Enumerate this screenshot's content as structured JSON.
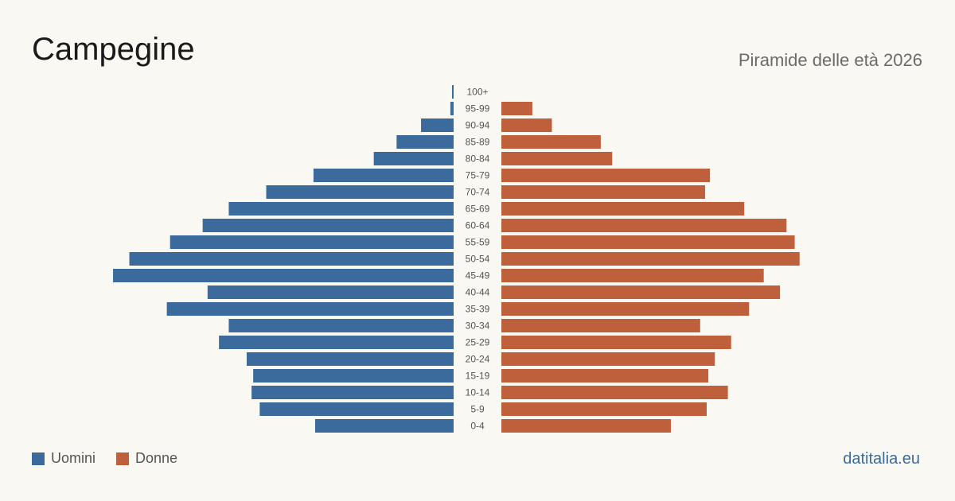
{
  "header": {
    "title": "Campegine",
    "subtitle": "Piramide delle età 2026"
  },
  "legend": {
    "items": [
      {
        "label": "Uomini",
        "color": "#3a6b9c"
      },
      {
        "label": "Donne",
        "color": "#bf603d"
      }
    ]
  },
  "footer": {
    "brand": "datitalia.eu"
  },
  "chart_data": {
    "type": "bar",
    "orientation": "horizontal-pyramid",
    "categories": [
      "100+",
      "95-99",
      "90-94",
      "85-89",
      "80-84",
      "75-79",
      "70-74",
      "65-69",
      "60-64",
      "55-59",
      "50-54",
      "45-49",
      "40-44",
      "35-39",
      "30-34",
      "25-29",
      "20-24",
      "15-19",
      "10-14",
      "5-9",
      "0-4"
    ],
    "series": [
      {
        "name": "Uomini",
        "color": "#3a6b9c",
        "values": [
          1,
          2,
          20,
          35,
          49,
          86,
          115,
          138,
          154,
          174,
          199,
          209,
          151,
          176,
          138,
          144,
          127,
          123,
          124,
          119,
          85
        ]
      },
      {
        "name": "Donne",
        "color": "#bf603d",
        "values": [
          0,
          19,
          31,
          61,
          68,
          128,
          125,
          149,
          175,
          180,
          183,
          161,
          171,
          152,
          122,
          141,
          131,
          127,
          139,
          126,
          104
        ]
      }
    ],
    "xlim": [
      0,
      210
    ],
    "legend_position": "bottom-left"
  }
}
